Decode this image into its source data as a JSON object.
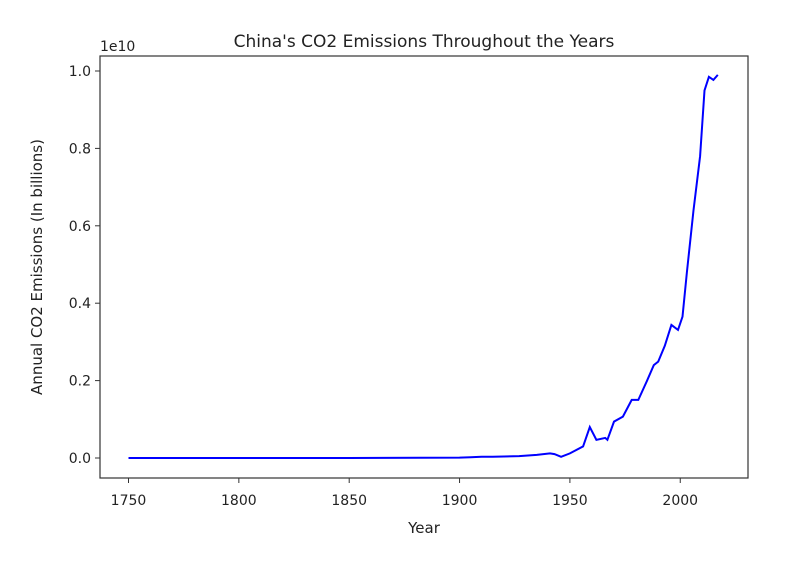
{
  "chart_data": {
    "type": "line",
    "title": "China's CO2 Emissions Throughout the Years",
    "xlabel": "Year",
    "ylabel": "Annual CO2 Emissions (In billions)",
    "y_offset_label": "1e10",
    "xlim": [
      1737,
      2030
    ],
    "ylim": [
      -0.05,
      1.03
    ],
    "x_ticks": [
      1750,
      1800,
      1850,
      1900,
      1950,
      2000
    ],
    "y_ticks": [
      0.0,
      0.2,
      0.4,
      0.6,
      0.8,
      1.0
    ],
    "y_tick_labels": [
      "0.0",
      "0.2",
      "0.4",
      "0.6",
      "0.8",
      "1.0"
    ],
    "grid": false,
    "series": [
      {
        "color": "#0000ff",
        "x": [
          1750,
          1800,
          1850,
          1900,
          1905,
          1910,
          1915,
          1920,
          1927,
          1935,
          1941,
          1943,
          1946,
          1950,
          1956,
          1959,
          1962,
          1966,
          1967,
          1970,
          1974,
          1978,
          1981,
          1985,
          1988,
          1990,
          1993,
          1996,
          1999,
          2001,
          2003,
          2006,
          2009,
          2011,
          2013,
          2015,
          2017
        ],
        "y": [
          0,
          0,
          0,
          0.001,
          0.002,
          0.003,
          0.003,
          0.004,
          0.005,
          0.008,
          0.012,
          0.01,
          0.003,
          0.012,
          0.03,
          0.08,
          0.047,
          0.052,
          0.047,
          0.094,
          0.107,
          0.15,
          0.15,
          0.2,
          0.24,
          0.249,
          0.29,
          0.344,
          0.331,
          0.365,
          0.48,
          0.64,
          0.78,
          0.95,
          0.985,
          0.977,
          0.99
        ]
      }
    ]
  }
}
